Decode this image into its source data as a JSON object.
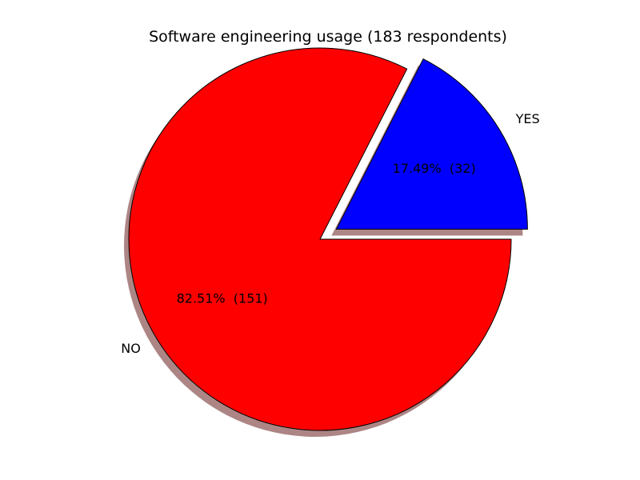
{
  "chart_data": {
    "type": "pie",
    "title": "Software engineering usage (183 respondents)",
    "total": 183,
    "start_angle_deg": 0,
    "direction": "counterclockwise",
    "shadow": true,
    "slices": [
      {
        "label": "YES",
        "value": 32,
        "percent": 17.49,
        "pct_text": "17.49%  (32)",
        "color": "#0000ff",
        "exploded": true
      },
      {
        "label": "NO",
        "value": 151,
        "percent": 82.51,
        "pct_text": "82.51%  (151)",
        "color": "#ff0000",
        "exploded": false
      }
    ],
    "edge_color": "#000000",
    "shadow_color": "#a47878"
  }
}
